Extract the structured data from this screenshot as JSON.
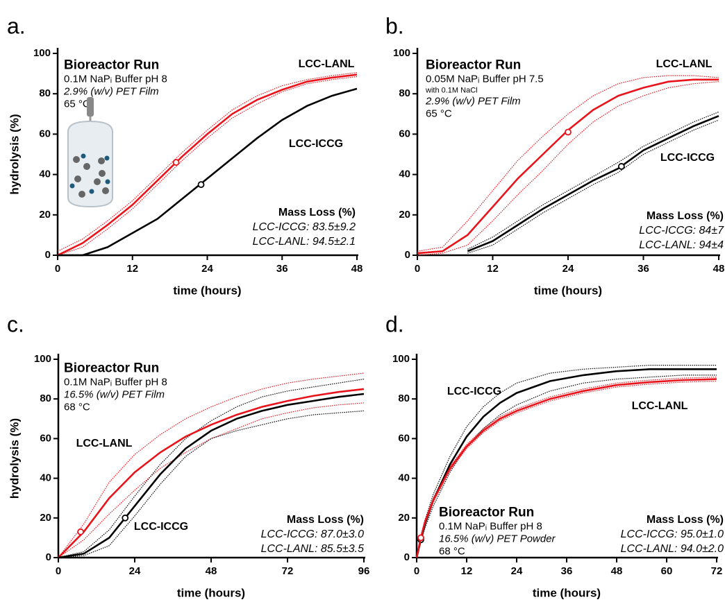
{
  "chart_data": [
    {
      "type": "line",
      "panel": "a.",
      "y_label": "hydrolysis (%)",
      "x_label": "time (hours)",
      "xlim": [
        0,
        48
      ],
      "ylim": [
        0,
        100
      ],
      "xticks": [
        0,
        12,
        24,
        36,
        48
      ],
      "yticks": [
        0,
        20,
        40,
        60,
        80,
        100
      ],
      "info": [
        {
          "text": "Bioreactor Run",
          "style": "bold"
        },
        {
          "text": "0.1M NaPᵢ Buffer pH 8",
          "style": "normal"
        },
        {
          "text": "2.9% (w/v) PET Film",
          "style": "italic"
        },
        {
          "text": "65 °C",
          "style": "normal"
        }
      ],
      "mass_loss": {
        "title": "Mass Loss (%)",
        "lines": [
          {
            "text": "LCC-ICCG: 83.5±9.2",
            "color": "#000000"
          },
          {
            "text": "LCC-LANL: 94.5±2.1",
            "color": "#e8131b"
          }
        ]
      },
      "x": [
        0,
        4,
        8,
        12,
        16,
        20,
        24,
        28,
        32,
        36,
        40,
        44,
        48
      ],
      "series": [
        {
          "name": "LCC-LANL",
          "color": "#e8131b",
          "values": [
            0,
            6,
            15,
            25,
            37,
            49,
            60,
            70,
            77,
            82,
            86,
            88,
            89.5
          ],
          "lower": [
            0,
            4,
            13,
            23,
            35,
            47,
            58,
            68,
            75,
            81,
            85,
            87,
            88.5
          ],
          "upper": [
            2,
            8,
            17,
            27,
            39,
            51,
            62,
            72,
            79,
            84,
            87,
            89,
            90.5
          ],
          "midpoint": {
            "x": 19,
            "y": 46
          }
        },
        {
          "name": "LCC-ICCG",
          "color": "#000000",
          "values": [
            0,
            0,
            4,
            11,
            18,
            28,
            38,
            48,
            58,
            67,
            74,
            79,
            82.5
          ],
          "midpoint": {
            "x": 23,
            "y": 35
          }
        }
      ]
    },
    {
      "type": "line",
      "panel": "b.",
      "x_label": "time (hours)",
      "xlim": [
        0,
        48
      ],
      "ylim": [
        0,
        100
      ],
      "xticks": [
        0,
        12,
        24,
        36,
        48
      ],
      "yticks": [
        0,
        20,
        40,
        60,
        80,
        100
      ],
      "info": [
        {
          "text": "Bioreactor Run",
          "style": "bold"
        },
        {
          "text": "0.05M NaPᵢ Buffer pH 7.5",
          "style": "normal"
        },
        {
          "text": "with 0.1M NaCl",
          "style": "small"
        },
        {
          "text": "2.9% (w/v) PET Film",
          "style": "italic"
        },
        {
          "text": "65 °C",
          "style": "normal"
        }
      ],
      "mass_loss": {
        "title": "Mass Loss (%)",
        "lines": [
          {
            "text": "LCC-ICCG: 84±7",
            "color": "#000000"
          },
          {
            "text": "LCC-LANL: 94±4",
            "color": "#e8131b"
          }
        ]
      },
      "x": [
        0,
        4,
        8,
        12,
        16,
        20,
        24,
        28,
        32,
        36,
        40,
        44,
        48
      ],
      "series": [
        {
          "name": "LCC-LANL",
          "color": "#e8131b",
          "values": [
            1,
            2,
            10,
            24,
            38,
            50,
            62,
            72,
            79,
            83,
            86,
            87,
            87
          ],
          "lower": [
            0,
            1,
            5,
            17,
            30,
            42,
            55,
            66,
            74,
            79,
            83,
            85,
            86
          ],
          "upper": [
            2,
            4,
            17,
            32,
            47,
            59,
            70,
            79,
            85,
            88,
            89,
            89,
            88
          ],
          "midpoint": {
            "x": 24,
            "y": 61
          }
        },
        {
          "name": "LCC-ICCG",
          "color": "#000000",
          "values": [
            null,
            null,
            2,
            7,
            15,
            23,
            30,
            37,
            43,
            52,
            58,
            64,
            69
          ],
          "lower": [
            null,
            null,
            1,
            5,
            13,
            21,
            28,
            35,
            41,
            50,
            56,
            62,
            67
          ],
          "upper": [
            null,
            null,
            3,
            9,
            17,
            25,
            32,
            39,
            46,
            54,
            60,
            66,
            71
          ],
          "midpoint": {
            "x": 32.5,
            "y": 44
          }
        }
      ]
    },
    {
      "type": "line",
      "panel": "c.",
      "y_label": "hydrolysis (%)",
      "x_label": "time (hours)",
      "xlim": [
        0,
        96
      ],
      "ylim": [
        0,
        100
      ],
      "xticks": [
        0,
        24,
        48,
        72,
        96
      ],
      "yticks": [
        0,
        20,
        40,
        60,
        80,
        100
      ],
      "info": [
        {
          "text": "Bioreactor Run",
          "style": "bold"
        },
        {
          "text": "0.1M NaPᵢ Buffer pH 8",
          "style": "normal"
        },
        {
          "text": "16.5% (w/v) PET Film",
          "style": "italic"
        },
        {
          "text": "68 °C",
          "style": "normal"
        }
      ],
      "mass_loss": {
        "title": "Mass Loss (%)",
        "lines": [
          {
            "text": "LCC-ICCG: 87.0±3.0",
            "color": "#000000"
          },
          {
            "text": "LCC-LANL: 85.5±3.5",
            "color": "#e8131b"
          }
        ]
      },
      "x": [
        0,
        8,
        16,
        24,
        32,
        40,
        48,
        56,
        64,
        72,
        80,
        88,
        96
      ],
      "series": [
        {
          "name": "LCC-LANL",
          "color": "#e8131b",
          "values": [
            0,
            13,
            30,
            43,
            53,
            61,
            67,
            72,
            76,
            79,
            81.5,
            83.5,
            85
          ],
          "lower": [
            0,
            9,
            22,
            34,
            45,
            53,
            60,
            65,
            70,
            73,
            75.5,
            77,
            78
          ],
          "upper": [
            0,
            17,
            38,
            52,
            62,
            70,
            76,
            81,
            85,
            88,
            90,
            91.5,
            93
          ],
          "midpoint": {
            "x": 7,
            "y": 13
          }
        },
        {
          "name": "LCC-ICCG",
          "color": "#000000",
          "values": [
            0,
            2,
            10,
            26,
            42,
            55,
            64,
            70,
            74,
            77,
            79,
            81,
            82.5
          ],
          "lower": [
            0,
            1,
            6,
            21,
            37,
            51,
            60,
            64,
            67,
            70,
            72,
            73,
            74
          ],
          "upper": [
            0,
            3,
            14,
            31,
            47,
            60,
            69,
            76,
            81,
            84,
            86,
            88,
            90
          ],
          "midpoint": {
            "x": 21,
            "y": 20
          }
        }
      ]
    },
    {
      "type": "line",
      "panel": "d.",
      "x_label": "time (hours)",
      "xlim": [
        0,
        72
      ],
      "ylim": [
        0,
        100
      ],
      "xticks": [
        0,
        12,
        24,
        36,
        48,
        60,
        72
      ],
      "yticks": [
        0,
        20,
        40,
        60,
        80,
        100
      ],
      "info": [
        {
          "text": "Bioreactor Run",
          "style": "bold"
        },
        {
          "text": "0.1M NaPᵢ Buffer pH 8",
          "style": "normal"
        },
        {
          "text": "16.5% (w/v) PET Powder",
          "style": "italic"
        },
        {
          "text": "68 °C",
          "style": "normal"
        }
      ],
      "mass_loss": {
        "title": "Mass Loss (%)",
        "lines": [
          {
            "text": "LCC-ICCG: 95.0±1.0",
            "color": "#000000"
          },
          {
            "text": "LCC-LANL: 94.0±2.0",
            "color": "#e8131b"
          }
        ]
      },
      "x": [
        0,
        1,
        2,
        4,
        8,
        12,
        16,
        20,
        24,
        32,
        40,
        48,
        56,
        64,
        72
      ],
      "series": [
        {
          "name": "LCC-ICCG",
          "color": "#000000",
          "values": [
            0,
            9,
            17,
            29,
            47,
            61,
            71,
            78,
            83,
            89,
            92,
            94,
            95,
            95,
            95
          ],
          "lower": [
            0,
            8,
            15,
            26,
            43,
            56,
            65,
            72,
            77,
            84,
            88,
            90,
            91,
            92,
            92
          ],
          "upper": [
            0,
            10,
            19,
            32,
            51,
            66,
            76,
            83,
            88,
            93,
            95,
            96,
            97,
            97,
            97
          ],
          "midpoint": {
            "x": 1,
            "y": 9
          }
        },
        {
          "name": "LCC-LANL",
          "color": "#e8131b",
          "values": [
            0,
            10,
            18,
            29,
            45,
            56,
            64,
            70,
            74,
            80,
            84,
            87,
            88.5,
            89.5,
            90
          ],
          "lower": [
            0,
            9,
            17,
            28,
            44,
            55,
            63,
            69,
            73,
            79,
            83,
            86,
            87.5,
            88.5,
            89
          ],
          "upper": [
            0,
            11,
            19,
            30,
            46,
            57,
            65,
            71,
            75,
            81,
            85,
            88,
            89.5,
            90.5,
            91
          ],
          "midpoint": {
            "x": 1,
            "y": 10
          }
        }
      ]
    }
  ]
}
